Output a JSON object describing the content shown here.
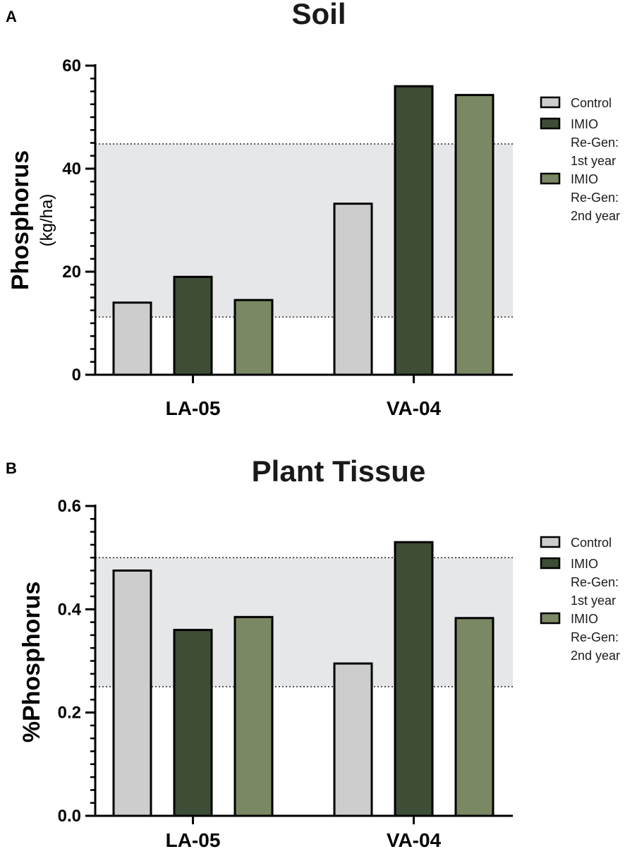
{
  "chart_data": [
    {
      "panel": "A",
      "type": "bar",
      "title": "Soil",
      "ylabel": "Phosphorus",
      "ylabel_unit": "(kg/ha)",
      "xlabel": "",
      "ylim": [
        0,
        60
      ],
      "yticks": [
        0,
        20,
        40,
        60
      ],
      "ytick_labels": [
        "0",
        "20",
        "40",
        "60"
      ],
      "categories": [
        "LA-05",
        "VA-04"
      ],
      "series": [
        {
          "name": "Control",
          "values": [
            14,
            33.2
          ],
          "color": "#cdcdcd"
        },
        {
          "name": "IMIO Re-Gen: 1st year",
          "values": [
            19,
            56
          ],
          "color": "#3e4d36"
        },
        {
          "name": "IMIO Re-Gen: 2nd year",
          "values": [
            14.5,
            54.3
          ],
          "color": "#7a8963"
        }
      ],
      "legend": [
        {
          "lines": [
            "Control"
          ],
          "color": "#cdcdcd"
        },
        {
          "lines": [
            "IMIO",
            "Re-Gen:",
            "1st year"
          ],
          "color": "#3e4d36"
        },
        {
          "lines": [
            "IMIO",
            "Re-Gen:",
            "2nd year"
          ],
          "color": "#7a8963"
        }
      ],
      "reference_band": [
        11.2,
        44.8
      ],
      "legend_position": "right"
    },
    {
      "panel": "B",
      "type": "bar",
      "title": "Plant Tissue",
      "ylabel": "%Phosphorus",
      "ylabel_unit": "",
      "xlabel": "",
      "ylim": [
        0,
        0.6
      ],
      "yticks": [
        0,
        0.2,
        0.4,
        0.6
      ],
      "ytick_labels": [
        "0.0",
        "0.2",
        "0.4",
        "0.6"
      ],
      "categories": [
        "LA-05",
        "VA-04"
      ],
      "series": [
        {
          "name": "Control",
          "values": [
            0.475,
            0.295
          ],
          "color": "#cdcdcd"
        },
        {
          "name": "IMIO Re-Gen: 1st year",
          "values": [
            0.36,
            0.53
          ],
          "color": "#3e4d36"
        },
        {
          "name": "IMIO Re-Gen: 2nd year",
          "values": [
            0.385,
            0.383
          ],
          "color": "#7a8963"
        }
      ],
      "legend": [
        {
          "lines": [
            "Control"
          ],
          "color": "#cdcdcd"
        },
        {
          "lines": [
            "IMIO",
            "Re-Gen:",
            "1st year"
          ],
          "color": "#3e4d36"
        },
        {
          "lines": [
            "IMIO",
            "Re-Gen:",
            "2nd year"
          ],
          "color": "#7a8963"
        }
      ],
      "reference_band": [
        0.25,
        0.5
      ],
      "legend_position": "right"
    }
  ]
}
